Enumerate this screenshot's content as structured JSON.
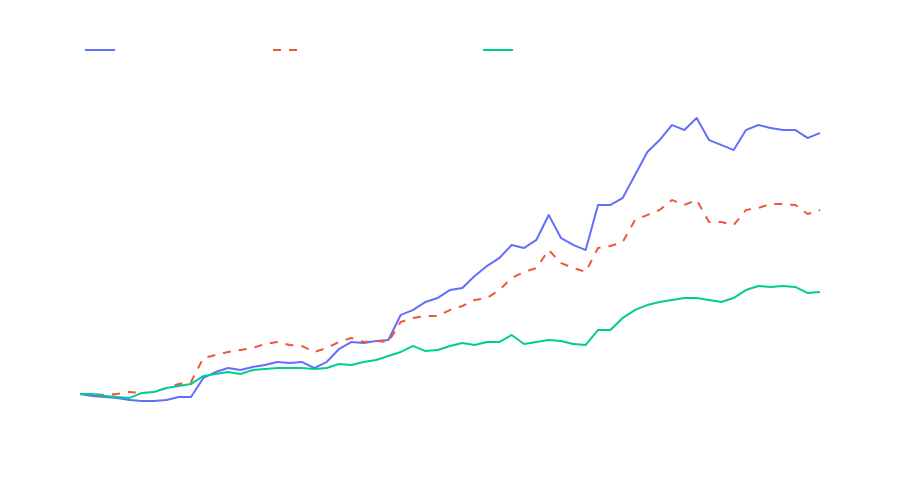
{
  "chart_data": {
    "type": "line",
    "x": [
      0,
      1,
      2,
      3,
      4,
      5,
      6,
      7,
      8,
      9,
      10,
      11,
      12,
      13,
      14,
      15,
      16,
      17,
      18,
      19,
      20,
      21,
      22,
      23,
      24,
      25,
      26,
      27,
      28,
      29,
      30,
      31,
      32,
      33,
      34,
      35,
      36,
      37,
      38,
      39,
      40,
      41,
      42,
      43,
      44,
      45,
      46,
      47,
      48,
      49,
      50,
      51,
      52,
      53,
      54,
      55,
      56,
      57,
      58,
      59,
      60
    ],
    "xlim": [
      0,
      60
    ],
    "ylim": [
      0,
      340
    ],
    "legend": "top",
    "series": [
      {
        "color": "#636efa",
        "dash": "solid",
        "values": [
          46,
          44,
          43,
          42,
          40,
          39,
          39,
          40,
          43,
          43,
          62,
          68,
          72,
          70,
          73,
          75,
          78,
          77,
          78,
          72,
          78,
          91,
          98,
          97,
          99,
          100,
          125,
          130,
          138,
          142,
          150,
          152,
          164,
          174,
          182,
          195,
          192,
          200,
          225,
          202,
          195,
          190,
          235,
          235,
          242,
          265,
          288,
          300,
          315,
          310,
          322,
          300,
          295,
          290,
          310,
          315,
          312,
          310,
          310,
          302,
          307
        ]
      },
      {
        "color": "#ef553b",
        "dash": "dash",
        "values": [
          46,
          46,
          45,
          46,
          48,
          47,
          48,
          52,
          56,
          58,
          82,
          85,
          88,
          90,
          92,
          96,
          98,
          95,
          94,
          88,
          92,
          98,
          102,
          98,
          99,
          98,
          118,
          122,
          124,
          124,
          130,
          134,
          140,
          142,
          150,
          162,
          168,
          172,
          190,
          177,
          172,
          168,
          192,
          194,
          198,
          220,
          225,
          230,
          240,
          235,
          240,
          218,
          218,
          215,
          230,
          232,
          236,
          236,
          235,
          226,
          230
        ]
      },
      {
        "color": "#00cc96",
        "dash": "solid",
        "values": [
          46,
          46,
          44,
          43,
          42,
          47,
          48,
          52,
          54,
          56,
          64,
          66,
          68,
          66,
          70,
          71,
          72,
          72,
          72,
          71,
          72,
          76,
          75,
          78,
          80,
          84,
          88,
          94,
          89,
          90,
          94,
          97,
          95,
          98,
          98,
          105,
          96,
          98,
          100,
          99,
          96,
          95,
          110,
          110,
          122,
          130,
          135,
          138,
          140,
          142,
          142,
          140,
          138,
          142,
          150,
          154,
          153,
          154,
          153,
          147,
          148
        ]
      }
    ]
  }
}
